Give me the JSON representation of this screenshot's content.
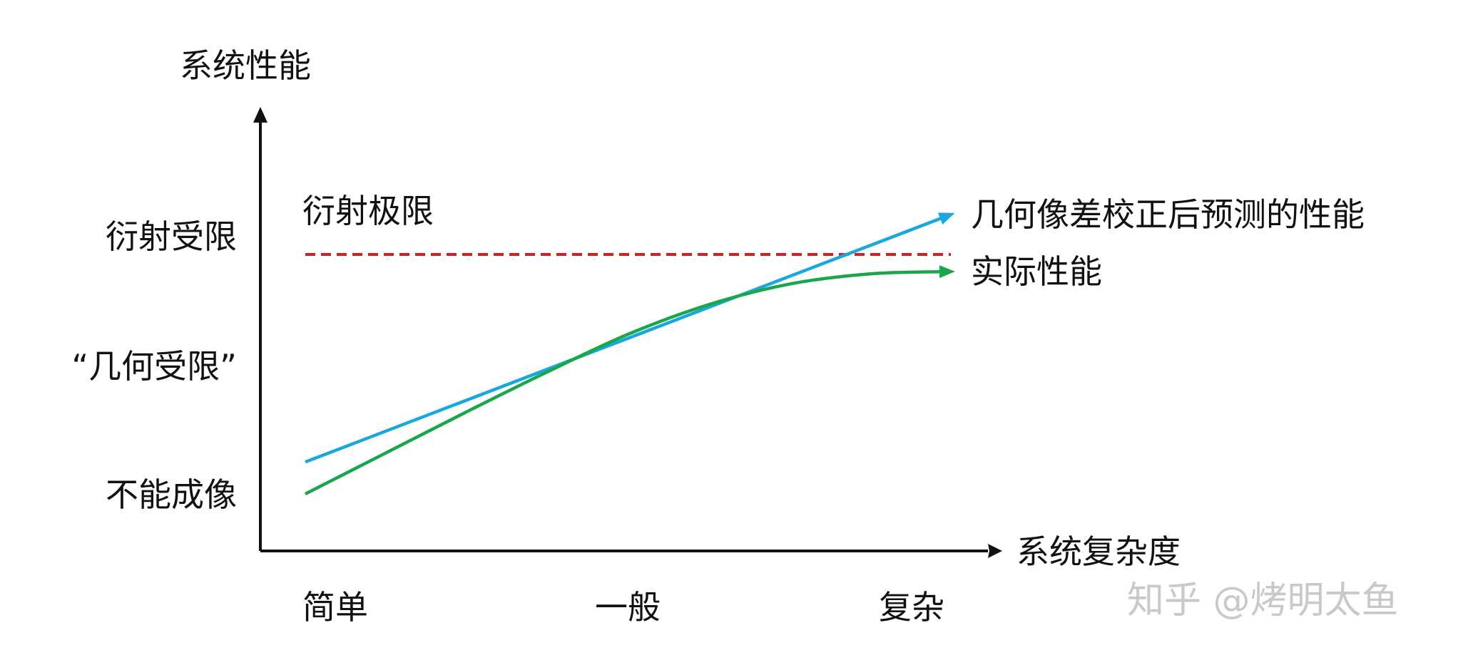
{
  "chart_data": {
    "type": "line",
    "xlabel": "系统复杂度",
    "ylabel": "系统性能",
    "x_ticks": [
      "简单",
      "一般",
      "复杂"
    ],
    "y_ticks": [
      "不能成像",
      "“几何受限”",
      "衍射受限"
    ],
    "xlim": [
      0,
      2
    ],
    "ylim": [
      0,
      3
    ],
    "series": [
      {
        "name": "几何像差校正后预测的性能",
        "color": "#1aa7e0",
        "style": "solid-arrow",
        "x": [
          0,
          2
        ],
        "y": [
          0.28,
          2.45
        ]
      },
      {
        "name": "实际性能",
        "color": "#1aa64b",
        "style": "solid-arrow",
        "x": [
          0,
          0.25,
          0.5,
          0.75,
          1.0,
          1.25,
          1.5,
          1.75,
          2.0
        ],
        "y": [
          0.0,
          0.36,
          0.72,
          1.07,
          1.4,
          1.66,
          1.84,
          1.93,
          1.95
        ]
      }
    ],
    "reference_lines": [
      {
        "label": "衍射极限",
        "y": 2.1,
        "color": "#d62020",
        "style": "dashed"
      }
    ],
    "grid": false,
    "legend": "none"
  },
  "watermark": "知乎 @烤明太鱼"
}
